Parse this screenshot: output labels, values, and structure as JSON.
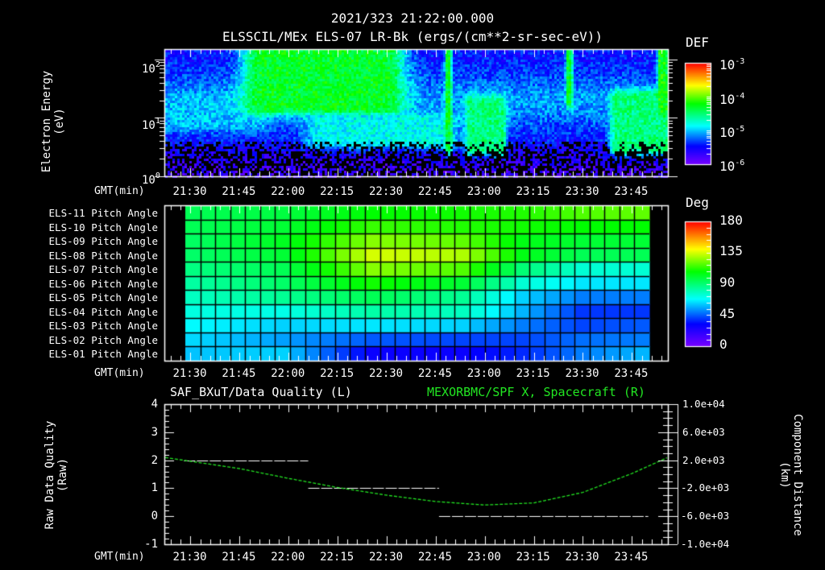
{
  "header": {
    "timestamp": "2021/323 21:22:00.000",
    "subtitle": "ELSSCIL/MEx ELS-07 LR-Bk  (ergs/(cm**2-sr-sec-eV))"
  },
  "colors": {
    "background": "#000000",
    "axes": "#ffffff",
    "quality_line": "#ffffff",
    "position_line": "#22e622",
    "right_title": "#22e622"
  },
  "time_axis": {
    "label": "GMT(min)",
    "ticks": [
      "21:30",
      "21:45",
      "22:00",
      "22:15",
      "22:30",
      "22:45",
      "23:00",
      "23:15",
      "23:30",
      "23:45"
    ]
  },
  "chart_data": [
    {
      "type": "heatmap",
      "name": "electron-spectrogram",
      "title": "ELSSCIL/MEx ELS-07 LR-Bk (ergs/(cm**2-sr-sec-eV))",
      "xlabel": "GMT(min)",
      "ylabel": "Electron Energy (eV)",
      "y_scale": "log",
      "ylim": [
        1,
        150
      ],
      "y_ticks": [
        "10^0",
        "10^1",
        "10^2"
      ],
      "x_range": [
        "21:22",
        "23:56"
      ],
      "colorbar": {
        "label": "DEF",
        "scale": "log",
        "range": [
          1e-06,
          0.001
        ],
        "ticks": [
          "10^-6",
          "10^-5",
          "10^-4",
          "10^-3"
        ]
      },
      "features": [
        {
          "t_start": "21:25",
          "t_end": "21:50",
          "energy_eV": [
            8,
            20
          ],
          "level": "1e-5"
        },
        {
          "t_start": "21:51",
          "t_end": "22:30",
          "energy_eV": [
            15,
            150
          ],
          "level": "5e-5"
        },
        {
          "t_start": "22:10",
          "t_end": "22:47",
          "energy_eV": [
            4,
            10
          ],
          "level": "1.5e-5"
        },
        {
          "t_start": "22:48",
          "t_end": "22:49",
          "energy_eV": [
            3,
            150
          ],
          "level": "5e-5"
        },
        {
          "t_start": "22:55",
          "t_end": "23:05",
          "energy_eV": [
            3,
            20
          ],
          "level": "3e-5"
        },
        {
          "t_start": "23:25",
          "t_end": "23:26",
          "energy_eV": [
            20,
            150
          ],
          "level": "5e-5"
        },
        {
          "t_start": "23:40",
          "t_end": "23:55",
          "energy_eV": [
            3,
            25
          ],
          "level": "3e-5"
        },
        {
          "t_start": "23:53",
          "t_end": "23:55",
          "energy_eV": [
            15,
            150
          ],
          "level": "6e-5"
        }
      ]
    },
    {
      "type": "heatmap",
      "name": "pitch-angle-grid",
      "ylabel_rows": [
        "ELS-11 Pitch Angle",
        "ELS-10 Pitch Angle",
        "ELS-09 Pitch Angle",
        "ELS-08 Pitch Angle",
        "ELS-07 Pitch Angle",
        "ELS-06 Pitch Angle",
        "ELS-05 Pitch Angle",
        "ELS-04 Pitch Angle",
        "ELS-03 Pitch Angle",
        "ELS-02 Pitch Angle",
        "ELS-01 Pitch Angle"
      ],
      "xlabel": "GMT(min)",
      "colorbar": {
        "label": "Deg",
        "range": [
          0,
          180
        ],
        "ticks": [
          "0",
          "45",
          "90",
          "135",
          "180"
        ]
      },
      "columns": 31,
      "keyframes_deg": {
        "col_index": [
          0,
          6,
          12,
          18,
          22,
          26,
          30
        ],
        "rows": [
          [
            95,
            98,
            108,
            110,
            112,
            118,
            120
          ],
          [
            95,
            100,
            115,
            112,
            110,
            108,
            108
          ],
          [
            93,
            103,
            125,
            120,
            105,
            100,
            100
          ],
          [
            92,
            100,
            135,
            130,
            105,
            95,
            95
          ],
          [
            88,
            95,
            125,
            118,
            90,
            75,
            75
          ],
          [
            83,
            92,
            110,
            100,
            75,
            65,
            65
          ],
          [
            78,
            85,
            95,
            85,
            62,
            50,
            50
          ],
          [
            73,
            72,
            82,
            78,
            58,
            40,
            40
          ],
          [
            68,
            62,
            65,
            62,
            50,
            42,
            45
          ],
          [
            63,
            55,
            45,
            42,
            42,
            48,
            50
          ],
          [
            60,
            62,
            30,
            30,
            38,
            50,
            58
          ]
        ]
      }
    },
    {
      "type": "line",
      "name": "data-quality-and-position",
      "title_left": "SAF_BXuT/Data Quality (L)",
      "title_right": "MEXORBMC/SPF X, Spacecraft (R)",
      "xlabel": "GMT(min)",
      "ylabel_left": "Raw Data Quality (Raw)",
      "ylabel_right": "Component Distance (km)",
      "ylim_left": [
        -1,
        4
      ],
      "yticks_left": [
        "-1",
        "0",
        "1",
        "2",
        "3",
        "4"
      ],
      "ylim_right": [
        -10000,
        10000
      ],
      "yticks_right": [
        "1.0e+04",
        "6.0e+03",
        "2.0e+03",
        "-2.0e+03",
        "-6.0e+03",
        "-1.0e+04"
      ],
      "series": [
        {
          "name": "Data Quality",
          "axis": "left",
          "segments": [
            {
              "t_start": "21:28",
              "t_end": "22:06",
              "value": 2
            },
            {
              "t_start": "22:06",
              "t_end": "22:46",
              "value": 1
            },
            {
              "t_start": "22:46",
              "t_end": "23:50",
              "value": 0
            }
          ]
        },
        {
          "name": "SPF X",
          "axis": "right",
          "x": [
            "21:22",
            "21:45",
            "22:00",
            "22:15",
            "22:30",
            "22:45",
            "23:00",
            "23:15",
            "23:30",
            "23:45",
            "23:56"
          ],
          "values": [
            2400,
            800,
            -600,
            -1900,
            -3000,
            -3900,
            -4400,
            -4100,
            -2600,
            100,
            2400
          ]
        }
      ]
    }
  ],
  "panel1": {
    "ylabel_line1": "Electron Energy",
    "ylabel_line2": "(eV)",
    "yticks": [
      {
        "base": "10",
        "exp": "2"
      },
      {
        "base": "10",
        "exp": "1"
      },
      {
        "base": "10",
        "exp": "0"
      }
    ],
    "colorbar_label": "DEF",
    "colorbar_ticks": [
      {
        "base": "10",
        "exp": "-3"
      },
      {
        "base": "10",
        "exp": "-4"
      },
      {
        "base": "10",
        "exp": "-5"
      },
      {
        "base": "10",
        "exp": "-6"
      }
    ]
  },
  "panel2": {
    "colorbar_label": "Deg",
    "colorbar_ticks": [
      "180",
      "135",
      "90",
      "45",
      "0"
    ]
  },
  "panel3": {
    "title_left": "SAF_BXuT/Data Quality (L)",
    "title_right": "MEXORBMC/SPF X, Spacecraft (R)",
    "ylabel_left_line1": "Raw Data Quality",
    "ylabel_left_line2": "(Raw)",
    "ylabel_right_line1": "Component Distance",
    "ylabel_right_line2": "(km)",
    "yticks_left": [
      "4",
      "3",
      "2",
      "1",
      "0",
      "-1"
    ],
    "yticks_right": [
      "1.0e+04",
      "6.0e+03",
      "2.0e+03",
      "-2.0e+03",
      "-6.0e+03",
      "-1.0e+04"
    ]
  }
}
